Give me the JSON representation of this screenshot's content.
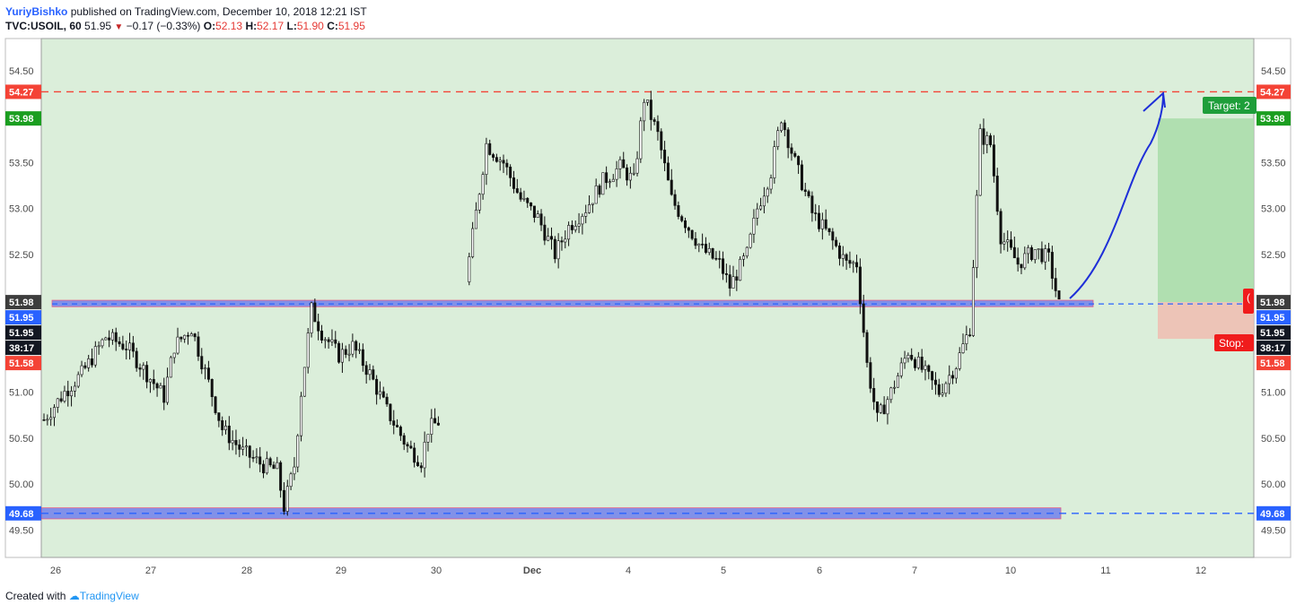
{
  "header": {
    "author": "YuriyBishko",
    "published_text": "published on TradingView.com, December 10, 2018 12:21 IST",
    "symbol": "TVC:USOIL, 60",
    "last": "51.95",
    "change": "−0.17 (−0.33%)",
    "open_label": "O:",
    "open": "52.13",
    "high_label": "H:",
    "high": "52.17",
    "low_label": "L:",
    "low": "51.90",
    "close_label": "C:",
    "close": "51.95"
  },
  "footer": {
    "created_with": "Created with",
    "brand": "TradingView"
  },
  "chart_data": {
    "type": "candlestick",
    "symbol": "TVC:USOIL",
    "interval": "60",
    "ylim": [
      49.2,
      54.85
    ],
    "ytick_labels": [
      "54.50",
      "54.00",
      "53.50",
      "53.00",
      "52.50",
      "52.00",
      "51.50",
      "51.00",
      "50.50",
      "50.00",
      "49.50"
    ],
    "yticks": [
      54.5,
      54.0,
      53.5,
      53.0,
      52.5,
      52.0,
      51.5,
      51.0,
      50.5,
      50.0,
      49.5
    ],
    "xtick_labels": [
      "26",
      "27",
      "28",
      "29",
      "30",
      "Dec",
      "4",
      "5",
      "6",
      "7",
      "10",
      "11",
      "12"
    ],
    "price_labels_left": [
      {
        "text": "54.27",
        "value": 54.27,
        "color": "#f44336"
      },
      {
        "text": "53.98",
        "value": 53.98,
        "color": "#1b9e20"
      },
      {
        "text": "51.98",
        "value": 51.98,
        "color": "#3d3d3d"
      },
      {
        "text": "51.95",
        "value": 51.95,
        "color": "#2962ff"
      },
      {
        "text": "51.95",
        "value": 51.95,
        "color": "#131722"
      },
      {
        "text": "38:17",
        "value": 51.77,
        "color": "#131722"
      },
      {
        "text": "51.58",
        "value": 51.58,
        "color": "#f44336"
      },
      {
        "text": "49.68",
        "value": 49.68,
        "color": "#2962ff"
      }
    ],
    "price_labels_right": [
      {
        "text": "54.27",
        "value": 54.27,
        "color": "#f44336"
      },
      {
        "text": "53.98",
        "value": 53.98,
        "color": "#1b9e20"
      },
      {
        "text": "51.98",
        "value": 51.98,
        "color": "#3d3d3d"
      },
      {
        "text": "51.95",
        "value": 51.95,
        "color": "#2962ff"
      },
      {
        "text": "51.95",
        "value": 51.95,
        "color": "#131722"
      },
      {
        "text": "38:17",
        "value": 51.77,
        "color": "#131722"
      },
      {
        "text": "51.58",
        "value": 51.58,
        "color": "#f44336"
      },
      {
        "text": "49.68",
        "value": 49.68,
        "color": "#2962ff"
      }
    ],
    "resistance_line": 54.27,
    "support_zone": {
      "low": 51.93,
      "high": 52.0
    },
    "lower_zone": {
      "low": 49.62,
      "high": 49.74
    },
    "position": {
      "entry": 51.98,
      "target": 53.98,
      "stop": 51.58,
      "target_label": "Target: 2",
      "stop_label": "Stop:",
      "entry_label": "("
    },
    "candle_path_anchors": [
      [
        0,
        50.7
      ],
      [
        12,
        51.0
      ],
      [
        22,
        51.2
      ],
      [
        36,
        51.6
      ],
      [
        48,
        51.5
      ],
      [
        60,
        51.2
      ],
      [
        70,
        50.95
      ],
      [
        76,
        51.5
      ],
      [
        86,
        51.7
      ],
      [
        96,
        51.1
      ],
      [
        104,
        50.6
      ],
      [
        116,
        50.35
      ],
      [
        128,
        50.2
      ],
      [
        136,
        50.15
      ],
      [
        140,
        49.75
      ],
      [
        146,
        50.2
      ],
      [
        150,
        51.0
      ],
      [
        156,
        51.9
      ],
      [
        162,
        51.65
      ],
      [
        172,
        51.4
      ],
      [
        180,
        51.5
      ],
      [
        190,
        51.2
      ],
      [
        200,
        50.8
      ],
      [
        212,
        50.4
      ],
      [
        220,
        50.25
      ],
      [
        224,
        50.6
      ],
      [
        232,
        50.7
      ],
      [
        246,
        52.2
      ],
      [
        258,
        53.7
      ],
      [
        268,
        53.5
      ],
      [
        278,
        53.1
      ],
      [
        288,
        52.9
      ],
      [
        298,
        52.5
      ],
      [
        306,
        52.8
      ],
      [
        316,
        53.0
      ],
      [
        326,
        53.3
      ],
      [
        336,
        53.45
      ],
      [
        344,
        53.3
      ],
      [
        350,
        54.2
      ],
      [
        358,
        53.8
      ],
      [
        366,
        53.1
      ],
      [
        374,
        52.85
      ],
      [
        384,
        52.55
      ],
      [
        394,
        52.4
      ],
      [
        400,
        52.15
      ],
      [
        410,
        52.5
      ],
      [
        416,
        53.0
      ],
      [
        424,
        53.4
      ],
      [
        430,
        54.0
      ],
      [
        438,
        53.5
      ],
      [
        448,
        52.95
      ],
      [
        458,
        52.7
      ],
      [
        468,
        52.4
      ],
      [
        474,
        52.4
      ],
      [
        480,
        51.3
      ],
      [
        486,
        50.7
      ],
      [
        494,
        51.0
      ],
      [
        504,
        51.45
      ],
      [
        514,
        51.2
      ],
      [
        522,
        51.0
      ],
      [
        532,
        51.3
      ],
      [
        540,
        51.7
      ],
      [
        546,
        53.8
      ],
      [
        552,
        53.7
      ],
      [
        558,
        52.7
      ],
      [
        568,
        52.4
      ],
      [
        578,
        52.55
      ],
      [
        586,
        52.45
      ],
      [
        592,
        51.95
      ]
    ]
  }
}
